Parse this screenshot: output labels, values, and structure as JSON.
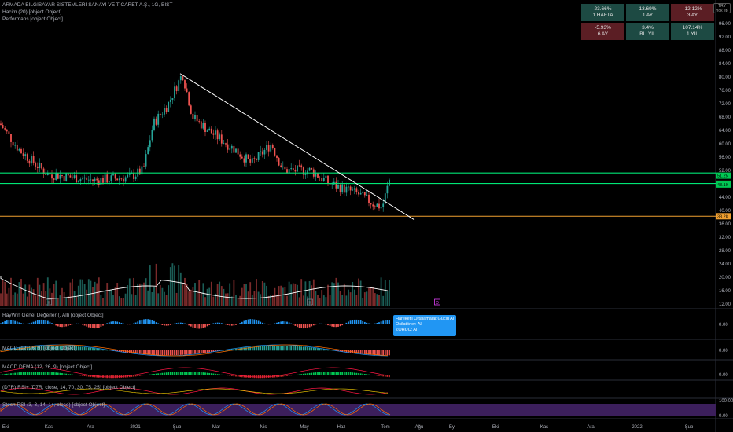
{
  "header": {
    "symbol": "ARMADA BİLGİSAYAR SİSTEMLERİ SANAYİ VE TİCARET A.Ş., 1G, BIST",
    "volume_legend": "Hacim (20) [object Object]",
    "performance_legend": "Performans [object Object]",
    "currency": "TRY",
    "currency_sub": "Yok eb"
  },
  "performance": [
    {
      "value": "23.66%",
      "label": "1 HAFTA",
      "trend": "up"
    },
    {
      "value": "13.69%",
      "label": "1 AY",
      "trend": "up"
    },
    {
      "value": "-12.12%",
      "label": "3 AY",
      "trend": "down"
    },
    {
      "value": "-5.93%",
      "label": "6 AY",
      "trend": "down"
    },
    {
      "value": "3.4%",
      "label": "BU YIL",
      "trend": "up"
    },
    {
      "value": "107.14%",
      "label": "1 YIL",
      "trend": "up"
    }
  ],
  "indicators": {
    "raywin": "RayWin Genel Değerler (, All) [object Object]",
    "macd": "MACD (12, 26, 9) [object Object]",
    "macd_dema": "MACD DEMA (12, 26, 9) [object Object]",
    "dmi": "(D7R) RSI+ (D7R, close, 14, 70, 30, 75, 25) [object Object]",
    "stoch": "Stoch RSI (3, 3, 14, 14, close) [object Object]"
  },
  "tooltip": {
    "line1": "Hareketli Ortalamalar:",
    "line1_value": "Güçlü Al",
    "line2": "Osilatörler: Al",
    "line3": "ZOHUC: Al"
  },
  "markers": {
    "earnings": "E",
    "dividend": "D"
  },
  "price_labels": {
    "resistance": "51.25",
    "current": "50.70",
    "support": "48.10",
    "floor": "38.28"
  },
  "indicator_scales": {
    "raywin": [
      "0.00"
    ],
    "macd": [
      "0.00"
    ],
    "dema": [
      "0.00"
    ],
    "stoch": [
      "100.00",
      "0.00"
    ]
  },
  "colors": {
    "up": "#26a69a",
    "down": "#ef5350",
    "green_line": "#00e676",
    "floor_line": "#f0a030",
    "trend_line": "#ffffff"
  },
  "chart_data": {
    "type": "candlestick",
    "title": "ARMADA BİLGİSAYAR SİSTEMLERİ SANAYİ VE TİCARET A.Ş., 1G, BIST",
    "y_ticks": [
      96,
      92,
      88,
      84,
      80,
      76,
      72,
      68,
      64,
      60,
      56,
      52,
      48,
      44,
      40,
      36,
      32,
      28,
      24,
      20,
      16,
      12
    ],
    "ylim": [
      10,
      99
    ],
    "x_ticks": [
      "Eki",
      "Kas",
      "Ara",
      "2021",
      "Şub",
      "Mar",
      "Nis",
      "May",
      "Haz",
      "Tem",
      "Ağu",
      "Eyl",
      "Eki",
      "Kas",
      "Ara",
      "2022",
      "Şub"
    ],
    "price_series": [
      {
        "month": "Eki",
        "close": 66
      },
      {
        "month": "Eki",
        "close": 58
      },
      {
        "month": "Kas",
        "close": 51
      },
      {
        "month": "Kas",
        "close": 49
      },
      {
        "month": "Ara",
        "close": 50
      },
      {
        "month": "Ara",
        "close": 50
      },
      {
        "month": "2021",
        "close": 60
      },
      {
        "month": "Oca",
        "close": 68
      },
      {
        "month": "Şub",
        "close": 78
      },
      {
        "month": "Şub",
        "close": 64
      },
      {
        "month": "Mar",
        "close": 62
      },
      {
        "month": "Mar",
        "close": 57
      },
      {
        "month": "Nis",
        "close": 55
      },
      {
        "month": "Nis",
        "close": 52
      },
      {
        "month": "May",
        "close": 50
      },
      {
        "month": "May",
        "close": 46
      },
      {
        "month": "Haz",
        "close": 44
      },
      {
        "month": "Haz",
        "close": 40
      },
      {
        "month": "Tem",
        "close": 50
      }
    ],
    "horizontal_levels": [
      51.25,
      48.1,
      38.28
    ],
    "trendline": {
      "from": {
        "month": "Şub",
        "price": 81
      },
      "to": {
        "month": "Tem",
        "price": 37
      }
    }
  }
}
